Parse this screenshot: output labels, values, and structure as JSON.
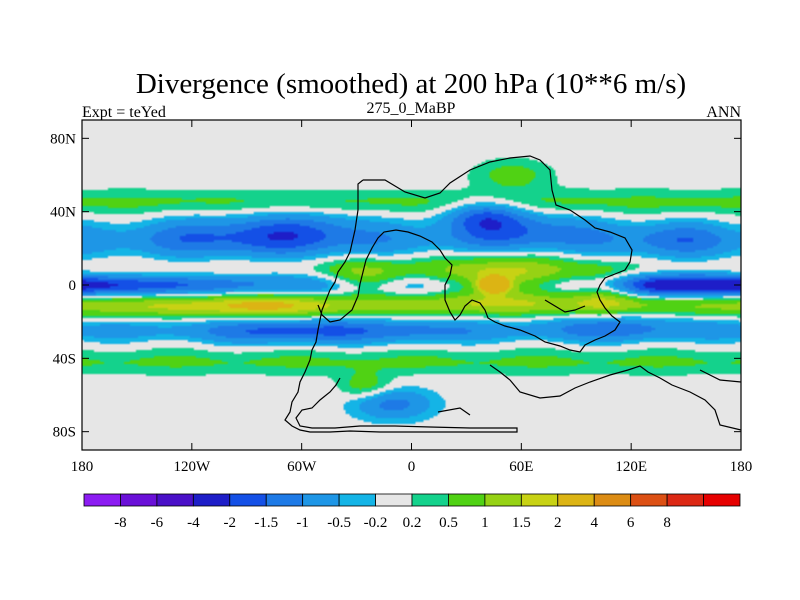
{
  "chart_data": {
    "type": "heatmap",
    "projection": "cylindrical-equidistant",
    "title": "Divergence (smoothed) at 200 hPa (10**6 m/s)",
    "left_string": "Expt = teYed",
    "center_string": "275_0_MaBP",
    "right_string": "ANN",
    "xaxis": {
      "range": [
        -180,
        180
      ],
      "ticks": [
        -180,
        -120,
        -60,
        0,
        60,
        120,
        180
      ],
      "tick_labels": [
        "180",
        "120W",
        "60W",
        "0",
        "60E",
        "120E",
        "180"
      ]
    },
    "yaxis": {
      "range": [
        -90,
        90
      ],
      "ticks": [
        80,
        40,
        0,
        -40,
        -80
      ],
      "tick_labels": [
        "80N",
        "40N",
        "0",
        "40S",
        "80S"
      ]
    },
    "colorbar": {
      "colors": [
        "#8c1cf2",
        "#6a10d8",
        "#4a10c8",
        "#1e1ec8",
        "#1450e6",
        "#1e7ae6",
        "#1e96e6",
        "#14b4e6",
        "#e6e6e6",
        "#14d28c",
        "#50d214",
        "#96d214",
        "#c8d214",
        "#dcb414",
        "#dc8c14",
        "#dc5014",
        "#dc2814",
        "#e60000"
      ],
      "labels": [
        "-8",
        "-6",
        "-4",
        "-2",
        "-1.5",
        "-1",
        "-0.5",
        "-0.2",
        "0.2",
        "0.5",
        "1",
        "1.5",
        "2",
        "4",
        "6",
        "8"
      ]
    },
    "levels": [
      -8,
      -6,
      -4,
      -2,
      -1.5,
      -1,
      -0.5,
      -0.2,
      0.2,
      0.5,
      1,
      1.5,
      2,
      4,
      6,
      8
    ],
    "grid": false,
    "field_components": [
      {
        "lon": 0,
        "lat": 0,
        "slon": 999,
        "slat": 5,
        "amp": -1.1
      },
      {
        "lon": -150,
        "lat": 0,
        "slon": 40,
        "slat": 3,
        "amp": -0.6
      },
      {
        "lon": 150,
        "lat": 0,
        "slon": 30,
        "slat": 4,
        "amp": -1.6
      },
      {
        "lon": 0,
        "lat": -11,
        "slon": 999,
        "slat": 4,
        "amp": 1.0
      },
      {
        "lon": -110,
        "lat": -12,
        "slon": 60,
        "slat": 4,
        "amp": 0.7
      },
      {
        "lon": 0,
        "lat": 8,
        "slon": 999,
        "slat": 4,
        "amp": 0.35
      },
      {
        "lon": 0,
        "lat": 24,
        "slon": 999,
        "slat": 6,
        "amp": -0.6
      },
      {
        "lon": -100,
        "lat": 27,
        "slon": 35,
        "slat": 8,
        "amp": -1.0
      },
      {
        "lon": -55,
        "lat": 30,
        "slon": 25,
        "slat": 8,
        "amp": -0.9
      },
      {
        "lon": 60,
        "lat": 30,
        "slon": 30,
        "slat": 7,
        "amp": -1.1
      },
      {
        "lon": 40,
        "lat": 38,
        "slon": 15,
        "slat": 6,
        "amp": -1.4
      },
      {
        "lon": 145,
        "lat": 25,
        "slon": 20,
        "slat": 7,
        "amp": -0.8
      },
      {
        "lon": 0,
        "lat": 45,
        "slon": 999,
        "slat": 5,
        "amp": 0.6
      },
      {
        "lon": 55,
        "lat": 60,
        "slon": 15,
        "slat": 6,
        "amp": 0.7
      },
      {
        "lon": 0,
        "lat": -25,
        "slon": 999,
        "slat": 4,
        "amp": -0.6
      },
      {
        "lon": -60,
        "lat": -25,
        "slon": 35,
        "slat": 5,
        "amp": -1.2
      },
      {
        "lon": 10,
        "lat": -25,
        "slon": 18,
        "slat": 5,
        "amp": -0.5
      },
      {
        "lon": 110,
        "lat": -22,
        "slon": 30,
        "slat": 6,
        "amp": -0.8
      },
      {
        "lon": 0,
        "lat": -42,
        "slon": 999,
        "slat": 5,
        "amp": 0.55
      },
      {
        "lon": 50,
        "lat": 2,
        "slon": 30,
        "slat": 9,
        "amp": 2.0
      },
      {
        "lon": 45,
        "lat": 0,
        "slon": 6,
        "slat": 3,
        "amp": 3.0
      },
      {
        "lon": -25,
        "lat": 3,
        "slon": 15,
        "slat": 7,
        "amp": 1.4
      },
      {
        "lon": 105,
        "lat": -4,
        "slon": 12,
        "slat": 8,
        "amp": 1.2
      },
      {
        "lon": -80,
        "lat": -10,
        "slon": 20,
        "slat": 6,
        "amp": 0.8
      },
      {
        "lon": -10,
        "lat": -65,
        "slon": 15,
        "slat": 6,
        "amp": -1.2
      },
      {
        "lon": -25,
        "lat": -55,
        "slon": 10,
        "slat": 5,
        "amp": 0.8
      }
    ]
  }
}
